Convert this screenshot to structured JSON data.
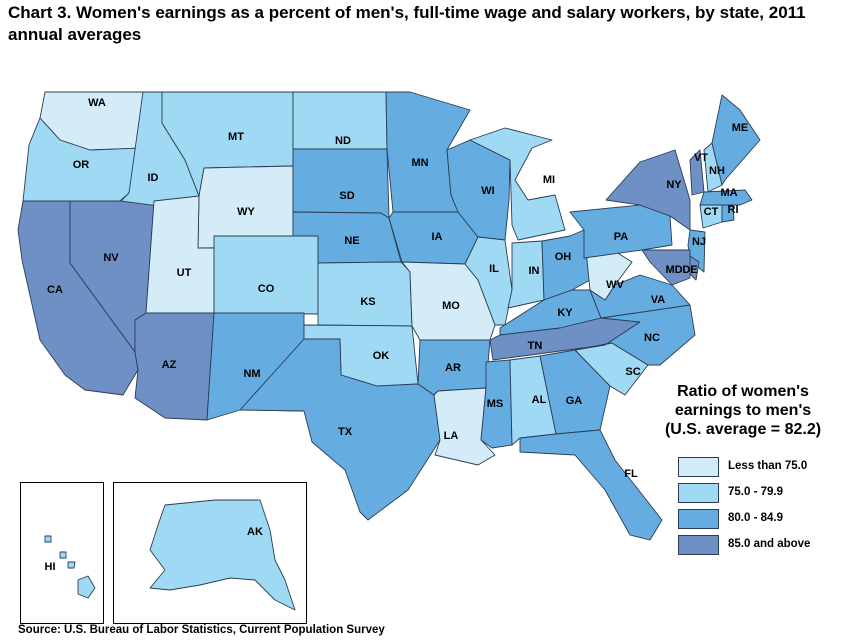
{
  "title": "Chart 3. Women's earnings as a percent of men's, full-time wage and salary workers, by state, 2011 annual averages",
  "source": "Source: U.S. Bureau of Labor Statistics, Current Population Survey",
  "legend": {
    "title_lines": [
      "Ratio of women's",
      "earnings to men's",
      "(U.S. average = 82.2)"
    ],
    "items": [
      {
        "label": "Less than 75.0",
        "color": "#d4ecf7"
      },
      {
        "label": "75.0 - 79.9",
        "color": "#9fd9f3"
      },
      {
        "label": "80.0 - 84.9",
        "color": "#65ace0"
      },
      {
        "label": "85.0 and above",
        "color": "#6f90c5"
      }
    ]
  },
  "states": {
    "WA": "Less than 75.0",
    "OR": "75.0 - 79.9",
    "CA": "85.0 and above",
    "NV": "85.0 and above",
    "ID": "75.0 - 79.9",
    "MT": "75.0 - 79.9",
    "WY": "Less than 75.0",
    "UT": "Less than 75.0",
    "AZ": "85.0 and above",
    "CO": "75.0 - 79.9",
    "NM": "80.0 - 84.9",
    "ND": "75.0 - 79.9",
    "SD": "80.0 - 84.9",
    "NE": "80.0 - 84.9",
    "KS": "75.0 - 79.9",
    "OK": "75.0 - 79.9",
    "TX": "80.0 - 84.9",
    "MN": "80.0 - 84.9",
    "IA": "80.0 - 84.9",
    "MO": "Less than 75.0",
    "AR": "80.0 - 84.9",
    "LA": "Less than 75.0",
    "WI": "80.0 - 84.9",
    "IL": "75.0 - 79.9",
    "MI": "75.0 - 79.9",
    "IN": "75.0 - 79.9",
    "OH": "80.0 - 84.9",
    "KY": "80.0 - 84.9",
    "TN": "85.0 and above",
    "MS": "80.0 - 84.9",
    "AL": "75.0 - 79.9",
    "GA": "80.0 - 84.9",
    "FL": "80.0 - 84.9",
    "SC": "75.0 - 79.9",
    "NC": "80.0 - 84.9",
    "VA": "80.0 - 84.9",
    "WV": "Less than 75.0",
    "PA": "80.0 - 84.9",
    "NY": "85.0 and above",
    "VT": "85.0 and above",
    "NH": "75.0 - 79.9",
    "ME": "80.0 - 84.9",
    "MA": "80.0 - 84.9",
    "CT": "75.0 - 79.9",
    "RI": "80.0 - 84.9",
    "NJ": "80.0 - 84.9",
    "DE": "85.0 and above",
    "MD": "85.0 and above",
    "AK": "75.0 - 79.9",
    "HI": "75.0 - 79.9"
  }
}
